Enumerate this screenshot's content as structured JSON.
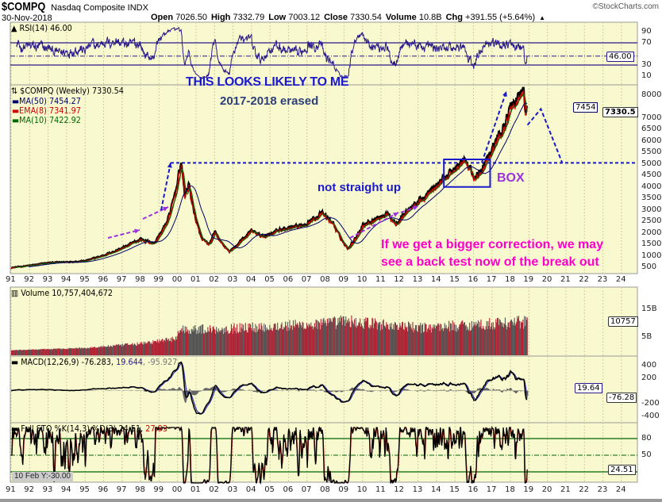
{
  "header": {
    "symbol": "$COMPQ",
    "name": "Nasdaq Composite INDX",
    "date": "30-Nov-2018",
    "copyright": "©StockCharts.com",
    "ohlc": [
      {
        "label": "Open",
        "value": "7026.50"
      },
      {
        "label": "High",
        "value": "7332.79"
      },
      {
        "label": "Low",
        "value": "7003.12"
      },
      {
        "label": "Close",
        "value": "7330.54"
      },
      {
        "label": "Volume",
        "value": "10.8B"
      },
      {
        "label": "Chg",
        "value": "+391.55 (+5.64%)"
      }
    ],
    "chg_icon": "triangle-up-icon"
  },
  "colors": {
    "plot_bg": "#f9f9cf",
    "price": "#000000",
    "ma50": "#000066",
    "ema8": "#cc0000",
    "ma10": "#006600",
    "rsi": "#2a1a8a",
    "volume_up": "#b22234",
    "volume_down": "#555555",
    "annotation_blue": "#1a1acc",
    "annotation_purple": "#9933dd",
    "annotation_magenta": "#ff00cc"
  },
  "rsi": {
    "label": "RSI(14) 46.00",
    "ticks": [
      "90",
      "70",
      "30",
      "10"
    ],
    "current": "46.00"
  },
  "price": {
    "legend_title": "$COMPQ (Weekly) 7330.54",
    "legend": [
      {
        "label": "MA(50) 7454.27",
        "color": "#000066"
      },
      {
        "label": "EMA(8) 7341.97",
        "color": "#cc0000"
      },
      {
        "label": "MA(10) 7422.92",
        "color": "#006600"
      }
    ],
    "ticks": [
      "8000",
      "7000",
      "6500",
      "6000",
      "5500",
      "5000",
      "4500",
      "4000",
      "3500",
      "3000",
      "2500",
      "2000",
      "1500",
      "1000",
      "500"
    ],
    "current_tag": "7330.5",
    "ma_tag": "7454"
  },
  "annotations": {
    "headline": "THIS LOOKS LIKELY TO ME",
    "subline": "2017-2018 erased",
    "not_straight": "not straight up",
    "box": "BOX",
    "correction_1": "If we get a bigger correction,  we may",
    "correction_2": "see a back test now of the break out"
  },
  "volume": {
    "label": "Volume 10,757,404,672",
    "ticks": [
      "15B",
      "5B"
    ],
    "current_tag": "10757"
  },
  "macd": {
    "label_prefix": "MACD(12,26,9) -76.283, ",
    "signal": "19.644",
    "sep": ", ",
    "hist": "-95.927",
    "ticks": [
      "400",
      "200",
      "-200",
      "-400"
    ],
    "tag_signal": "19.64",
    "tag_macd": "-76.28"
  },
  "sto": {
    "label_prefix": "Full STO %K(14,3) %D(3) 24.51, ",
    "d": "27.93",
    "ticks": [
      "80",
      "50"
    ],
    "current_tag": "24.51"
  },
  "x_axis": [
    "91",
    "92",
    "93",
    "94",
    "95",
    "96",
    "97",
    "98",
    "99",
    "00",
    "01",
    "02",
    "03",
    "04",
    "05",
    "06",
    "07",
    "08",
    "09",
    "10",
    "11",
    "12",
    "13",
    "14",
    "15",
    "16",
    "17",
    "18",
    "19",
    "20",
    "21",
    "22",
    "23",
    "24"
  ],
  "cursor_readout": "10 Feb Y:-30.00",
  "chart_data": {
    "type": "line",
    "title": "$COMPQ Nasdaq Composite INDX (Weekly)",
    "x_range": [
      1991,
      2024
    ],
    "y_range_price": [
      300,
      8400
    ],
    "price_keypoints": [
      [
        1991.0,
        470
      ],
      [
        1993.0,
        680
      ],
      [
        1995.0,
        760
      ],
      [
        1996.5,
        1150
      ],
      [
        1998.0,
        1700
      ],
      [
        1998.7,
        1500
      ],
      [
        1999.5,
        2600
      ],
      [
        1999.9,
        3800
      ],
      [
        2000.2,
        5048
      ],
      [
        2000.4,
        3500
      ],
      [
        2000.6,
        4100
      ],
      [
        2001.0,
        2500
      ],
      [
        2001.3,
        1700
      ],
      [
        2001.7,
        1450
      ],
      [
        2002.0,
        2000
      ],
      [
        2002.8,
        1150
      ],
      [
        2003.5,
        1700
      ],
      [
        2004.0,
        2050
      ],
      [
        2004.6,
        1800
      ],
      [
        2005.5,
        2100
      ],
      [
        2006.5,
        2200
      ],
      [
        2007.8,
        2800
      ],
      [
        2008.4,
        2400
      ],
      [
        2009.2,
        1300
      ],
      [
        2010.0,
        2300
      ],
      [
        2011.3,
        2800
      ],
      [
        2011.8,
        2400
      ],
      [
        2012.5,
        3000
      ],
      [
        2013.5,
        3600
      ],
      [
        2014.5,
        4400
      ],
      [
        2015.5,
        5100
      ],
      [
        2016.1,
        4300
      ],
      [
        2016.8,
        5300
      ],
      [
        2017.5,
        6300
      ],
      [
        2018.0,
        7300
      ],
      [
        2018.7,
        8100
      ],
      [
        2018.85,
        6900
      ],
      [
        2018.92,
        7330
      ]
    ],
    "volume_keypoints_billions": [
      [
        1991.0,
        0.4
      ],
      [
        1995.0,
        1.2
      ],
      [
        1998.0,
        2.8
      ],
      [
        1999.8,
        4.5
      ],
      [
        2000.2,
        8
      ],
      [
        2002.0,
        8
      ],
      [
        2008.0,
        10
      ],
      [
        2009.0,
        11
      ],
      [
        2013.0,
        8.5
      ],
      [
        2018.92,
        10.76
      ]
    ],
    "projection": {
      "from": [
        2018.92,
        7330
      ],
      "bounce": [
        2019.3,
        7400
      ],
      "target": [
        2020.8,
        5048
      ]
    },
    "breakout_level": 5048,
    "box": {
      "x": [
        2014.4,
        2016.9
      ],
      "y": [
        4000,
        5200
      ]
    },
    "rsi_levels": [
      70,
      30
    ],
    "sto_levels": [
      80,
      50,
      20
    ]
  }
}
